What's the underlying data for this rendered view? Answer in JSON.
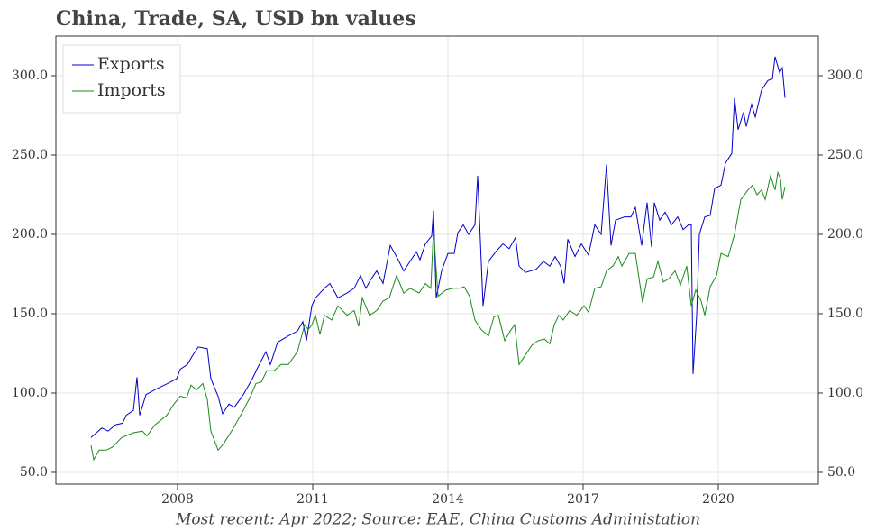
{
  "chart_data": {
    "type": "line",
    "title": "China, Trade, SA, USD bn values",
    "subtitle": "Most recent: Apr 2022; Source: EAE, China Customs Administation",
    "xlim": [
      2005.3,
      2022.22
    ],
    "xticks": [
      2008,
      2011,
      2014,
      2017,
      2020
    ],
    "ylim": [
      42.6,
      325
    ],
    "yticks": [
      {
        "value": 50,
        "label": "50.0"
      },
      {
        "value": 100,
        "label": "100.0"
      },
      {
        "value": 150,
        "label": "150.0"
      },
      {
        "value": 200,
        "label": "200.0"
      },
      {
        "value": 250,
        "label": "250.0"
      },
      {
        "value": 300,
        "label": "300.0"
      }
    ],
    "grid": true,
    "legend": "upper left",
    "series": [
      {
        "name": "Exports",
        "color": "#0000cc",
        "x": [
          2006.08,
          2006.32,
          2006.46,
          2006.62,
          2006.78,
          2006.86,
          2007.02,
          2007.1,
          2007.16,
          2007.3,
          2007.56,
          2007.78,
          2007.98,
          2008.06,
          2008.22,
          2008.32,
          2008.46,
          2008.66,
          2008.74,
          2008.9,
          2009.0,
          2009.14,
          2009.26,
          2009.46,
          2009.66,
          2009.76,
          2009.96,
          2010.06,
          2010.22,
          2010.46,
          2010.66,
          2010.78,
          2010.86,
          2010.98,
          2011.06,
          2011.26,
          2011.38,
          2011.56,
          2011.76,
          2011.92,
          2012.06,
          2012.18,
          2012.3,
          2012.42,
          2012.56,
          2012.72,
          2012.86,
          2013.02,
          2013.16,
          2013.3,
          2013.38,
          2013.5,
          2013.64,
          2013.68,
          2013.74,
          2013.86,
          2014.0,
          2014.14,
          2014.22,
          2014.34,
          2014.46,
          2014.6,
          2014.66,
          2014.78,
          2014.9,
          2015.06,
          2015.22,
          2015.36,
          2015.5,
          2015.58,
          2015.72,
          2015.96,
          2016.12,
          2016.26,
          2016.38,
          2016.5,
          2016.58,
          2016.66,
          2016.82,
          2016.96,
          2017.12,
          2017.26,
          2017.4,
          2017.52,
          2017.62,
          2017.72,
          2017.92,
          2018.06,
          2018.16,
          2018.3,
          2018.42,
          2018.52,
          2018.58,
          2018.7,
          2018.82,
          2018.96,
          2019.1,
          2019.22,
          2019.34,
          2019.4,
          2019.44,
          2019.52,
          2019.58,
          2019.7,
          2019.82,
          2019.92,
          2020.06,
          2020.16,
          2020.3,
          2020.36,
          2020.44,
          2020.56,
          2020.62,
          2020.74,
          2020.82,
          2020.96,
          2021.1,
          2021.2,
          2021.26,
          2021.36,
          2021.42,
          2021.48
        ],
        "values": [
          72,
          78,
          76,
          80,
          81,
          86,
          89,
          110,
          86,
          99,
          103,
          106,
          109,
          115,
          118,
          123,
          129,
          128,
          109,
          98,
          87,
          93,
          91,
          99,
          109,
          115,
          126,
          118,
          132,
          136,
          139,
          145,
          133,
          155,
          160,
          166,
          169,
          160,
          163,
          166,
          174,
          166,
          172,
          177,
          169,
          193,
          186,
          177,
          183,
          189,
          184,
          194,
          199,
          215,
          160,
          177,
          188,
          188,
          201,
          206,
          200,
          206,
          237,
          155,
          183,
          189,
          194,
          191,
          198,
          180,
          176,
          178,
          183,
          180,
          186,
          180,
          169,
          197,
          186,
          194,
          187,
          206,
          200,
          244,
          193,
          209,
          211,
          211,
          217,
          193,
          220,
          192,
          220,
          209,
          214,
          206,
          211,
          203,
          206,
          206,
          112,
          149,
          200,
          211,
          212,
          229,
          231,
          245,
          251,
          286,
          266,
          277,
          268,
          282,
          274,
          291,
          297,
          298,
          312,
          302,
          305,
          286
        ]
      },
      {
        "name": "Imports",
        "color": "#1a8a1a",
        "x": [
          2006.08,
          2006.14,
          2006.26,
          2006.42,
          2006.56,
          2006.76,
          2007.02,
          2007.22,
          2007.32,
          2007.5,
          2007.76,
          2007.92,
          2008.06,
          2008.2,
          2008.3,
          2008.42,
          2008.56,
          2008.66,
          2008.74,
          2008.9,
          2009.02,
          2009.22,
          2009.46,
          2009.62,
          2009.74,
          2009.86,
          2009.98,
          2010.14,
          2010.3,
          2010.46,
          2010.66,
          2010.82,
          2010.9,
          2010.98,
          2011.06,
          2011.16,
          2011.26,
          2011.42,
          2011.56,
          2011.76,
          2011.92,
          2012.02,
          2012.1,
          2012.26,
          2012.42,
          2012.56,
          2012.7,
          2012.86,
          2013.02,
          2013.16,
          2013.36,
          2013.5,
          2013.62,
          2013.68,
          2013.78,
          2013.96,
          2014.12,
          2014.26,
          2014.36,
          2014.48,
          2014.6,
          2014.74,
          2014.9,
          2015.02,
          2015.12,
          2015.26,
          2015.38,
          2015.48,
          2015.58,
          2015.72,
          2015.86,
          2016.0,
          2016.14,
          2016.26,
          2016.36,
          2016.46,
          2016.56,
          2016.7,
          2016.86,
          2017.02,
          2017.12,
          2017.26,
          2017.4,
          2017.52,
          2017.66,
          2017.78,
          2017.86,
          2018.02,
          2018.16,
          2018.32,
          2018.42,
          2018.56,
          2018.66,
          2018.78,
          2018.9,
          2019.04,
          2019.16,
          2019.3,
          2019.4,
          2019.5,
          2019.62,
          2019.7,
          2019.82,
          2019.96,
          2020.06,
          2020.22,
          2020.36,
          2020.5,
          2020.66,
          2020.76,
          2020.86,
          2020.96,
          2021.04,
          2021.16,
          2021.26,
          2021.32,
          2021.38,
          2021.42,
          2021.48
        ],
        "values": [
          67,
          58,
          64,
          64,
          66,
          72,
          75,
          76,
          73,
          80,
          86,
          93,
          98,
          97,
          105,
          102,
          106,
          96,
          76,
          64,
          68,
          77,
          89,
          98,
          106,
          107,
          114,
          114,
          118,
          118,
          126,
          143,
          140,
          143,
          149,
          137,
          149,
          146,
          155,
          149,
          152,
          142,
          160,
          149,
          152,
          158,
          160,
          174,
          163,
          166,
          163,
          169,
          166,
          203,
          161,
          165,
          166,
          166,
          167,
          161,
          146,
          140,
          136,
          148,
          149,
          133,
          139,
          143,
          118,
          124,
          130,
          133,
          134,
          131,
          143,
          149,
          146,
          152,
          149,
          155,
          151,
          166,
          167,
          177,
          180,
          186,
          180,
          188,
          188,
          157,
          172,
          173,
          183,
          170,
          172,
          177,
          168,
          180,
          155,
          165,
          158,
          149,
          167,
          174,
          188,
          186,
          200,
          222,
          228,
          231,
          225,
          228,
          222,
          237,
          228,
          239,
          235,
          222,
          230
        ]
      }
    ]
  }
}
